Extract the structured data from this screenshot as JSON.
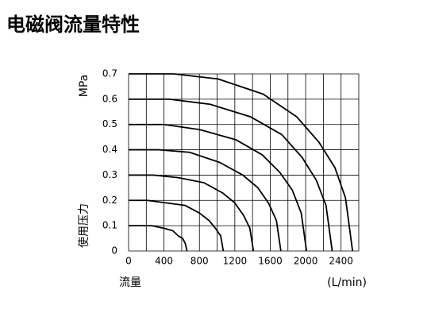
{
  "chart_data": {
    "type": "line",
    "title": "电磁阀流量特性",
    "ylabel": "使用压力",
    "yunit": "MPa",
    "xlabel": "流量",
    "xunit": "(L/min)",
    "color": "#000000",
    "grid": true,
    "xlim": [
      0,
      2600
    ],
    "xticks": [
      0,
      400,
      800,
      1200,
      1600,
      2000,
      2400
    ],
    "xgrid": [
      0,
      200,
      400,
      600,
      800,
      1000,
      1200,
      1400,
      1600,
      1800,
      2000,
      2200,
      2400,
      2600
    ],
    "ylim": [
      0,
      0.7
    ],
    "yticks": [
      0,
      0.1,
      0.2,
      0.3,
      0.4,
      0.5,
      0.6,
      0.7
    ],
    "series": [
      {
        "x": [
          0,
          510,
          1010,
          1520,
          1900,
          2150,
          2330,
          2450,
          2530
        ],
        "y": [
          0.7,
          0.7,
          0.68,
          0.62,
          0.53,
          0.43,
          0.33,
          0.21,
          0
        ]
      },
      {
        "x": [
          0,
          460,
          920,
          1380,
          1730,
          1960,
          2120,
          2230,
          2300
        ],
        "y": [
          0.6,
          0.6,
          0.58,
          0.53,
          0.46,
          0.37,
          0.28,
          0.18,
          0
        ]
      },
      {
        "x": [
          0,
          400,
          800,
          1210,
          1510,
          1710,
          1850,
          1950,
          2010
        ],
        "y": [
          0.5,
          0.5,
          0.48,
          0.44,
          0.38,
          0.31,
          0.24,
          0.15,
          0
        ]
      },
      {
        "x": [
          0,
          340,
          690,
          1030,
          1290,
          1460,
          1580,
          1670,
          1720
        ],
        "y": [
          0.4,
          0.4,
          0.39,
          0.35,
          0.3,
          0.25,
          0.19,
          0.12,
          0
        ]
      },
      {
        "x": [
          0,
          280,
          560,
          850,
          1060,
          1200,
          1300,
          1370,
          1410
        ],
        "y": [
          0.3,
          0.3,
          0.29,
          0.27,
          0.23,
          0.19,
          0.14,
          0.09,
          0
        ]
      },
      {
        "x": [
          0,
          210,
          430,
          640,
          800,
          910,
          980,
          1040,
          1070
        ],
        "y": [
          0.2,
          0.2,
          0.19,
          0.18,
          0.15,
          0.12,
          0.09,
          0.06,
          0
        ]
      },
      {
        "x": [
          0,
          130,
          260,
          400,
          500,
          560,
          610,
          640,
          660
        ],
        "y": [
          0.1,
          0.1,
          0.1,
          0.09,
          0.08,
          0.06,
          0.05,
          0.03,
          0
        ]
      }
    ]
  }
}
